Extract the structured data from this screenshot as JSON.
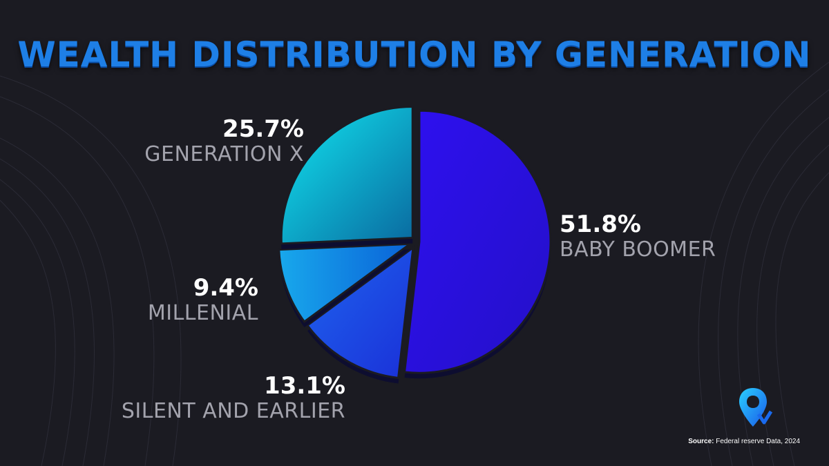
{
  "title": "WEALTH DISTRIBUTION BY GENERATION",
  "source": {
    "prefix": "Source:",
    "text": "Federal reserve Data, 2024"
  },
  "colors": {
    "background": "#1b1b22",
    "title": "#1e7fe6",
    "baby_boomer": "#2a10e6",
    "silent": "#1a4fe0",
    "millenial": "#1286e0",
    "generation_x": "#10b8d8"
  },
  "chart_data": {
    "type": "pie",
    "title": "WEALTH DISTRIBUTION BY GENERATION",
    "slices": [
      {
        "label": "BABY BOOMER",
        "value": 51.8,
        "display": "51.8%",
        "color": "#2a10e6"
      },
      {
        "label": "SILENT AND EARLIER",
        "value": 13.1,
        "display": "13.1%",
        "color": "#1a4fe0"
      },
      {
        "label": "MILLENIAL",
        "value": 9.4,
        "display": "9.4%",
        "color": "#1286e0"
      },
      {
        "label": "GENERATION X",
        "value": 25.7,
        "display": "25.7%",
        "color": "#10b8d8"
      }
    ],
    "legend": "none"
  }
}
